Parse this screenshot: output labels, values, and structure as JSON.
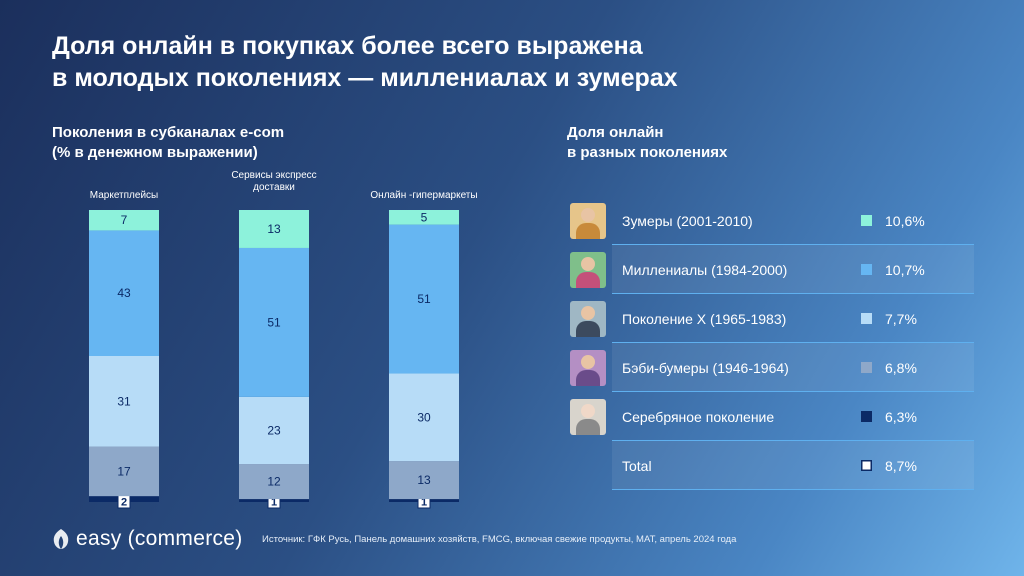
{
  "title_line1": "Доля онлайн в покупках более всего выражена",
  "title_line2": "в молодых поколениях — миллениалах и зумерах",
  "left_subtitle_line1": "Поколения в субканалах e-com",
  "left_subtitle_line2": "(% в денежном выражении)",
  "right_subtitle_line1": "Доля онлайн",
  "right_subtitle_line2": "в разных поколениях",
  "colors": {
    "zoomers": "#8df2db",
    "millennials": "#66b6f2",
    "genx": "#b7dcf7",
    "boomers": "#8ea8c9",
    "silver": "#0b2a66"
  },
  "chart_data": {
    "type": "bar",
    "stacked": true,
    "percent": true,
    "categories": [
      "Маркетплейсы",
      "Сервисы экспресс\nдоставки",
      "Онлайн -гипермаркеты"
    ],
    "series": [
      {
        "key": "silver",
        "values": [
          2,
          1,
          1
        ]
      },
      {
        "key": "boomers",
        "values": [
          17,
          12,
          13
        ]
      },
      {
        "key": "genx",
        "values": [
          31,
          23,
          30
        ]
      },
      {
        "key": "millennials",
        "values": [
          43,
          51,
          51
        ]
      },
      {
        "key": "zoomers",
        "values": [
          7,
          13,
          5
        ]
      }
    ],
    "ylim": [
      0,
      100
    ]
  },
  "generations": [
    {
      "label": "Зумеры (2001-2010)",
      "value": "10,6%",
      "color": "#8df2db",
      "icon": "zoomer-photo-icon"
    },
    {
      "label": "Миллениалы (1984-2000)",
      "value": "10,7%",
      "color": "#66b6f2",
      "icon": "millennial-photo-icon"
    },
    {
      "label": "Поколение X (1965-1983)",
      "value": "7,7%",
      "color": "#b7dcf7",
      "icon": "genx-photo-icon"
    },
    {
      "label": "Бэби-бумеры (1946-1964)",
      "value": "6,8%",
      "color": "#8ea8c9",
      "icon": "boomer-photo-icon"
    },
    {
      "label": "Серебряное поколение",
      "value": "6,3%",
      "color": "#0b2a66",
      "icon": "silver-photo-icon"
    },
    {
      "label": "Total",
      "value": "8,7%",
      "color": "#ffffff"
    }
  ],
  "logo_text_1": "easy",
  "logo_text_2": "(commerce)",
  "source": "Источник: ГФК Русь, Панель домашних хозяйств, FMCG, включая свежие продукты, MAT, апрель 2024 года"
}
